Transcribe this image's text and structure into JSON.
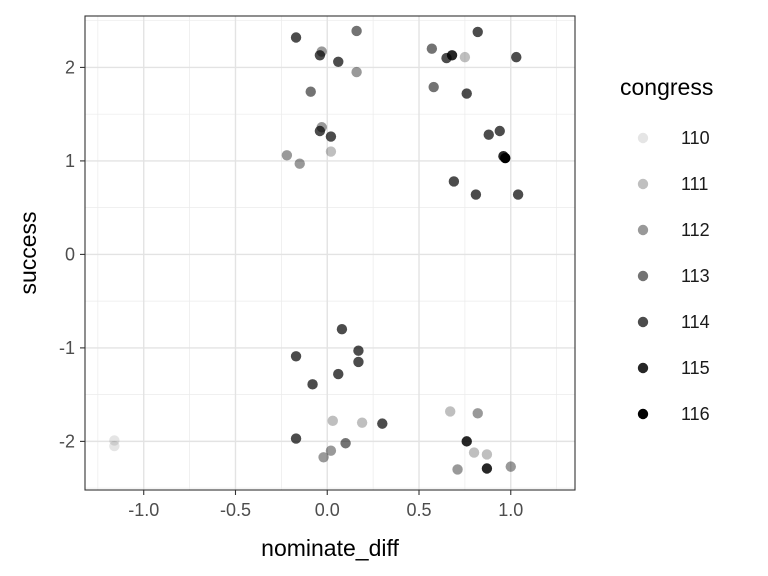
{
  "chart_data": {
    "type": "scatter",
    "xlabel": "nominate_diff",
    "ylabel": "success",
    "xlim": [
      -1.32,
      1.35
    ],
    "ylim": [
      -2.52,
      2.55
    ],
    "xticks": [
      -1.0,
      -0.5,
      0.0,
      0.5,
      1.0
    ],
    "xtick_labels": [
      "-1.0",
      "-0.5",
      "0.0",
      "0.5",
      "1.0"
    ],
    "yticks": [
      -2,
      -1,
      0,
      1,
      2
    ],
    "ytick_labels": [
      "-2",
      "-1",
      "0",
      "1",
      "2"
    ],
    "grid": true,
    "legend": {
      "title": "congress",
      "placement": "right",
      "entries": [
        {
          "label": "110",
          "color": "#000000",
          "opacity": 0.1
        },
        {
          "label": "111",
          "color": "#000000",
          "opacity": 0.25
        },
        {
          "label": "112",
          "color": "#000000",
          "opacity": 0.4
        },
        {
          "label": "113",
          "color": "#000000",
          "opacity": 0.55
        },
        {
          "label": "114",
          "color": "#000000",
          "opacity": 0.7
        },
        {
          "label": "115",
          "color": "#000000",
          "opacity": 0.85
        },
        {
          "label": "116",
          "color": "#000000",
          "opacity": 1.0
        }
      ]
    },
    "points": [
      {
        "x": -1.16,
        "y": -1.99,
        "congress": "110"
      },
      {
        "x": -1.16,
        "y": -2.05,
        "congress": "110"
      },
      {
        "x": 0.02,
        "y": 1.1,
        "congress": "111"
      },
      {
        "x": 0.03,
        "y": -1.78,
        "congress": "111"
      },
      {
        "x": 0.19,
        "y": -1.8,
        "congress": "111"
      },
      {
        "x": 0.67,
        "y": -1.68,
        "congress": "111"
      },
      {
        "x": 0.8,
        "y": -2.12,
        "congress": "111"
      },
      {
        "x": 0.87,
        "y": -2.14,
        "congress": "111"
      },
      {
        "x": 0.75,
        "y": 2.11,
        "congress": "111"
      },
      {
        "x": -0.22,
        "y": 1.06,
        "congress": "112"
      },
      {
        "x": -0.15,
        "y": 0.97,
        "congress": "112"
      },
      {
        "x": -0.03,
        "y": 1.36,
        "congress": "112"
      },
      {
        "x": -0.03,
        "y": 2.17,
        "congress": "112"
      },
      {
        "x": 0.16,
        "y": 1.95,
        "congress": "112"
      },
      {
        "x": -0.02,
        "y": -2.17,
        "congress": "112"
      },
      {
        "x": 0.02,
        "y": -2.1,
        "congress": "112"
      },
      {
        "x": 0.71,
        "y": -2.3,
        "congress": "112"
      },
      {
        "x": 0.82,
        "y": -1.7,
        "congress": "112"
      },
      {
        "x": 1.0,
        "y": -2.27,
        "congress": "112"
      },
      {
        "x": -0.09,
        "y": 1.74,
        "congress": "113"
      },
      {
        "x": 0.16,
        "y": 2.39,
        "congress": "113"
      },
      {
        "x": 0.57,
        "y": 2.2,
        "congress": "113"
      },
      {
        "x": 0.58,
        "y": 1.79,
        "congress": "113"
      },
      {
        "x": 0.1,
        "y": -2.02,
        "congress": "113"
      },
      {
        "x": -0.17,
        "y": 2.32,
        "congress": "114"
      },
      {
        "x": -0.04,
        "y": 2.13,
        "congress": "114"
      },
      {
        "x": 0.06,
        "y": 2.06,
        "congress": "114"
      },
      {
        "x": -0.04,
        "y": 1.32,
        "congress": "114"
      },
      {
        "x": 0.02,
        "y": 1.26,
        "congress": "114"
      },
      {
        "x": 0.65,
        "y": 2.1,
        "congress": "114"
      },
      {
        "x": 0.76,
        "y": 1.72,
        "congress": "114"
      },
      {
        "x": 0.82,
        "y": 2.38,
        "congress": "114"
      },
      {
        "x": 1.03,
        "y": 2.11,
        "congress": "114"
      },
      {
        "x": 0.88,
        "y": 1.28,
        "congress": "114"
      },
      {
        "x": 0.94,
        "y": 1.32,
        "congress": "114"
      },
      {
        "x": 0.69,
        "y": 0.78,
        "congress": "114"
      },
      {
        "x": 0.81,
        "y": 0.64,
        "congress": "114"
      },
      {
        "x": 1.04,
        "y": 0.64,
        "congress": "114"
      },
      {
        "x": 0.08,
        "y": -0.8,
        "congress": "114"
      },
      {
        "x": -0.17,
        "y": -1.09,
        "congress": "114"
      },
      {
        "x": 0.17,
        "y": -1.03,
        "congress": "114"
      },
      {
        "x": 0.17,
        "y": -1.15,
        "congress": "114"
      },
      {
        "x": 0.06,
        "y": -1.28,
        "congress": "114"
      },
      {
        "x": -0.08,
        "y": -1.39,
        "congress": "114"
      },
      {
        "x": 0.3,
        "y": -1.81,
        "congress": "114"
      },
      {
        "x": -0.17,
        "y": -1.97,
        "congress": "114"
      },
      {
        "x": 0.68,
        "y": 2.13,
        "congress": "115"
      },
      {
        "x": 0.96,
        "y": 1.05,
        "congress": "115"
      },
      {
        "x": 0.76,
        "y": -2.0,
        "congress": "115"
      },
      {
        "x": 0.87,
        "y": -2.29,
        "congress": "115"
      },
      {
        "x": 0.97,
        "y": 1.03,
        "congress": "116"
      }
    ]
  }
}
